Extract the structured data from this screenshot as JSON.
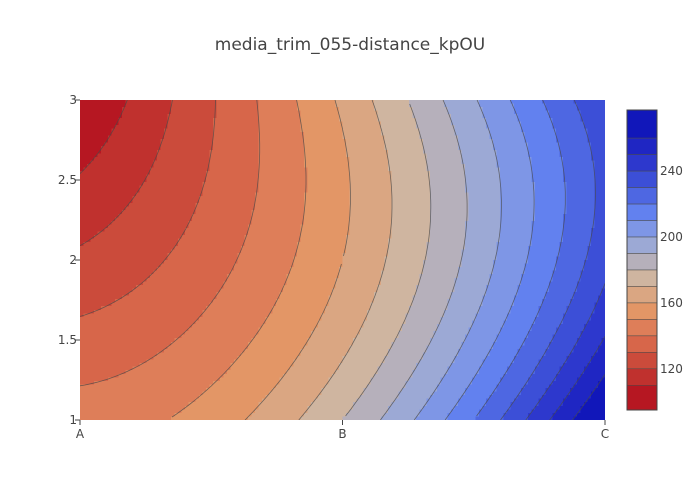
{
  "chart_data": {
    "type": "contour",
    "title": "media_trim_055-distance_kpOU",
    "x_categories": [
      "A",
      "B",
      "C"
    ],
    "y_ticks": [
      1,
      1.5,
      2,
      2.5,
      3
    ],
    "y_tick_labels": [
      "1",
      "1.5",
      "2",
      "2.5",
      "3"
    ],
    "ylim": [
      1,
      3
    ],
    "z": [
      [
        145,
        180,
        275
      ],
      [
        122,
        160,
        237
      ],
      [
        100,
        162,
        240
      ]
    ],
    "z_y_values": [
      1,
      2,
      3
    ],
    "colorscale": "RdBu-like (red low, blue high)",
    "contour_start": 100,
    "contour_step": 10,
    "contour_end": 270,
    "colorbar_ticks": [
      120,
      160,
      200,
      240
    ],
    "colorbar_range": [
      95,
      277
    ],
    "grid": false,
    "legend": "none",
    "colors": {
      "low": "#b10a1c",
      "high": "#0a0fb5"
    }
  }
}
